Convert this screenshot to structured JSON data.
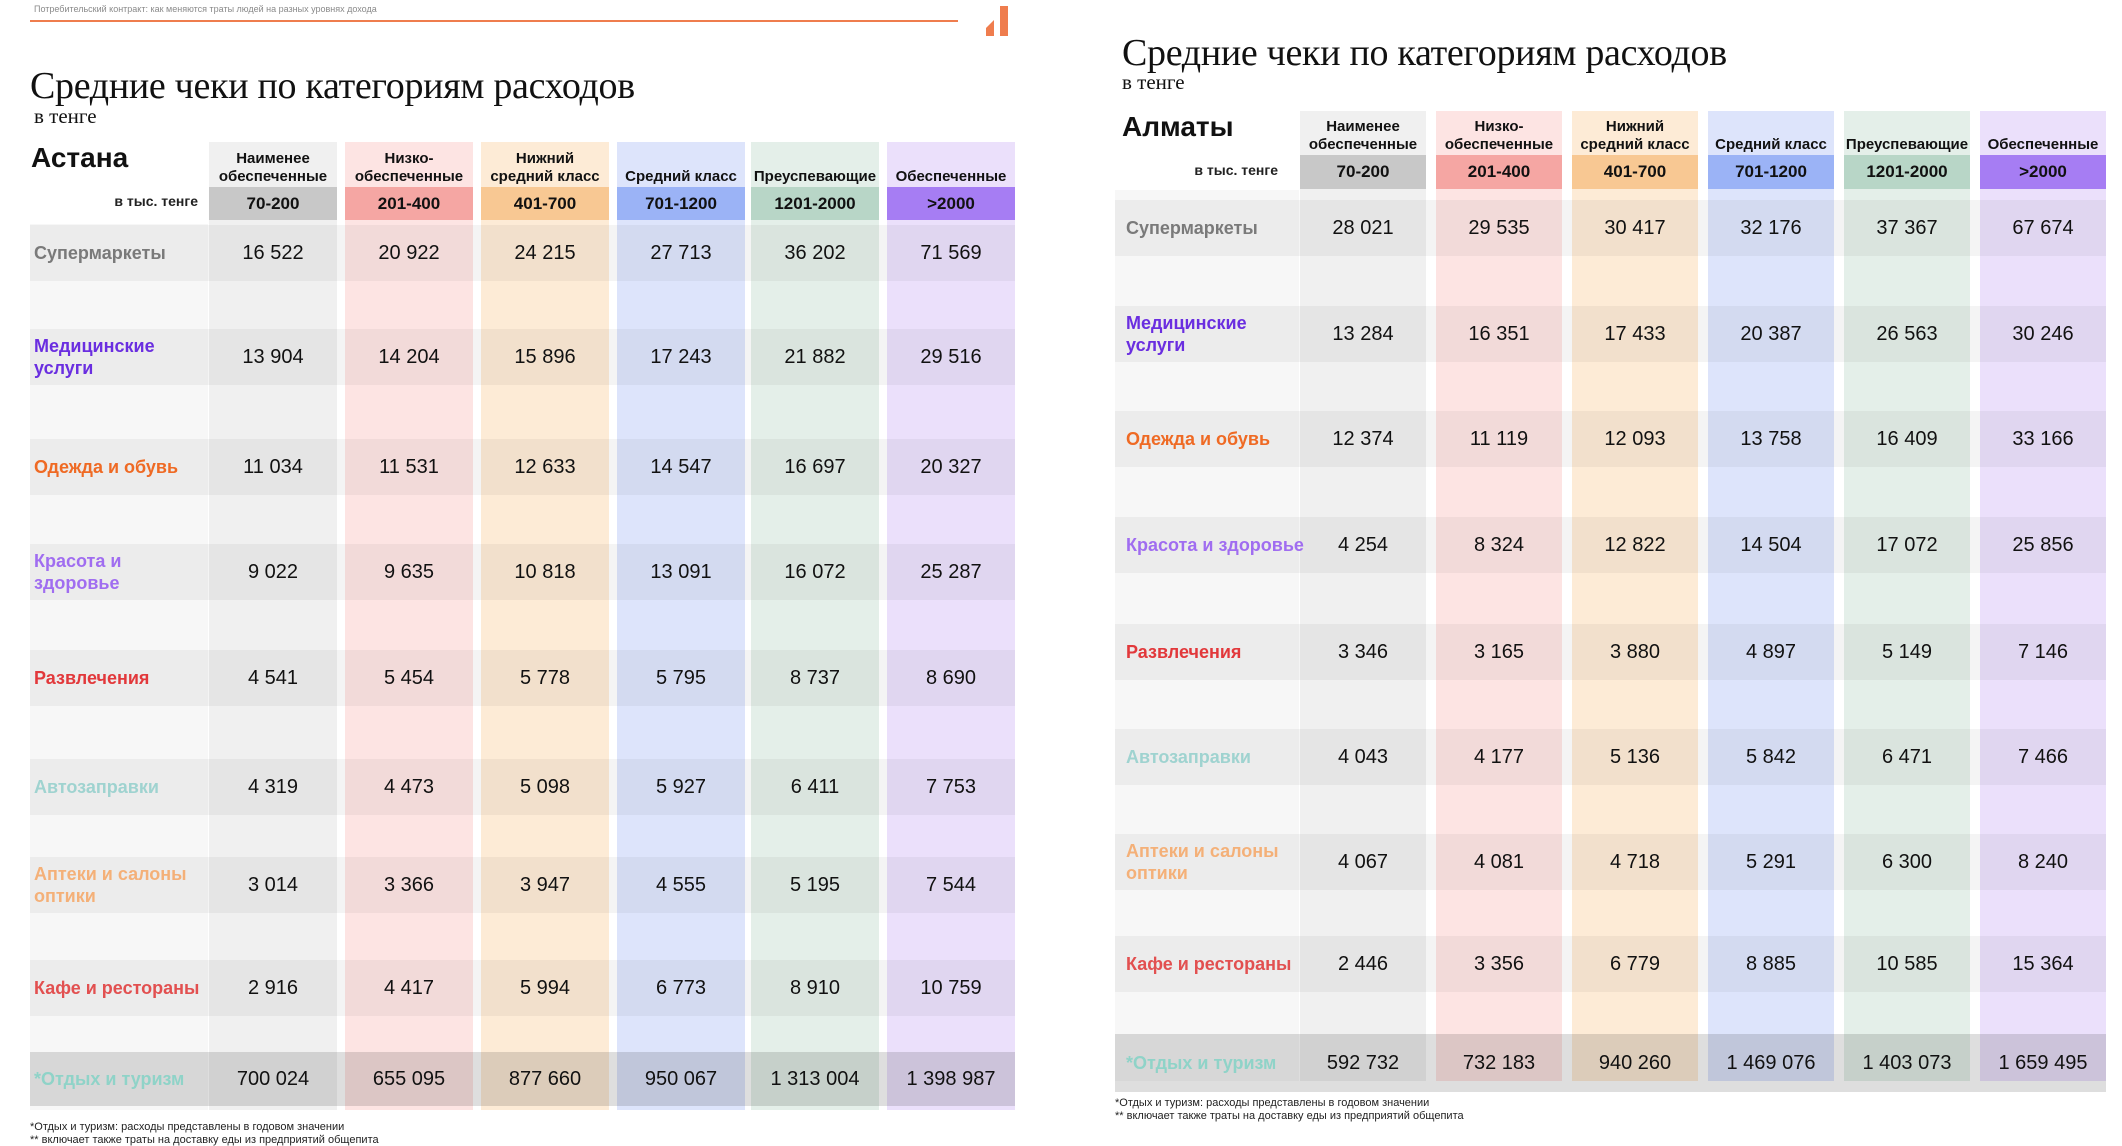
{
  "header": {
    "caption": "Потребительский контракт: как меняются траты людей на разных уровнях дохода",
    "accent_color": "#ef7d4e"
  },
  "colors": {
    "columns": [
      "#f0f0f0",
      "#fde4e3",
      "#fdebd6",
      "#dde4fb",
      "#e4efe9",
      "#ebe0fb"
    ],
    "ranges": [
      "#c8c8c8",
      "#f5a6a3",
      "#f8c893",
      "#9bb3f6",
      "#b8d6c7",
      "#a67df3"
    ],
    "labels": [
      "#7a7a7a",
      "#6a2ee0",
      "#ef6a24",
      "#a06df0",
      "#e2383b",
      "#9fd3d0",
      "#f4b078",
      "#e25050",
      "#8fd3c8"
    ]
  },
  "columns": {
    "headers": [
      "Наименее обеспеченные",
      "Низко-обеспеченные",
      "Нижний средний класс",
      "Средний класс",
      "Преуспевающие",
      "Обеспеченные"
    ],
    "ranges": [
      "70-200",
      "201-400",
      "401-700",
      "701-1200",
      "1201-2000",
      ">2000"
    ]
  },
  "panels": [
    {
      "title": "Средние чеки по категориям расходов",
      "subtitle": "в тенге",
      "city": "Астана",
      "unit": "в тыс. тенге",
      "rows": [
        {
          "label": "Супермаркеты",
          "values": [
            "16 522",
            "20 922",
            "24 215",
            "27 713",
            "36 202",
            "71 569"
          ]
        },
        {
          "label": "Медицинские услуги",
          "values": [
            "13 904",
            "14 204",
            "15 896",
            "17 243",
            "21 882",
            "29 516"
          ]
        },
        {
          "label": "Одежда и обувь",
          "values": [
            "11 034",
            "11 531",
            "12 633",
            "14 547",
            "16 697",
            "20 327"
          ]
        },
        {
          "label": "Красота и здоровье",
          "values": [
            "9 022",
            "9 635",
            "10 818",
            "13 091",
            "16 072",
            "25 287"
          ]
        },
        {
          "label": "Развлечения",
          "values": [
            "4 541",
            "5 454",
            "5 778",
            "5 795",
            "8 737",
            "8 690"
          ]
        },
        {
          "label": "Автозаправки",
          "values": [
            "4 319",
            "4 473",
            "5 098",
            "5 927",
            "6 411",
            "7 753"
          ]
        },
        {
          "label": "Аптеки и салоны оптики",
          "values": [
            "3 014",
            "3 366",
            "3 947",
            "4 555",
            "5 195",
            "7 544"
          ]
        },
        {
          "label": "Кафе и рестораны",
          "values": [
            "2 916",
            "4 417",
            "5 994",
            "6 773",
            "8 910",
            "10 759"
          ]
        },
        {
          "label": "*Отдых и туризм",
          "values": [
            "700 024",
            "655 095",
            "877 660",
            "950 067",
            "1 313 004",
            "1 398 987"
          ]
        }
      ],
      "footnotes": [
        "*Отдых и туризм: расходы представлены в годовом значении",
        "** включает также траты на доставку еды из предприятий общепита"
      ]
    },
    {
      "title": "Средние чеки по категориям расходов",
      "subtitle": "в тенге",
      "city": "Алматы",
      "unit": "в тыс. тенге",
      "rows": [
        {
          "label": "Супермаркеты",
          "values": [
            "28 021",
            "29 535",
            "30 417",
            "32 176",
            "37 367",
            "67 674"
          ]
        },
        {
          "label": "Медицинские услуги",
          "values": [
            "13 284",
            "16 351",
            "17 433",
            "20 387",
            "26 563",
            "30 246"
          ]
        },
        {
          "label": "Одежда и обувь",
          "values": [
            "12 374",
            "11 119",
            "12 093",
            "13 758",
            "16 409",
            "33 166"
          ]
        },
        {
          "label": "Красота и здоровье",
          "values": [
            "4 254",
            "8 324",
            "12 822",
            "14 504",
            "17 072",
            "25 856"
          ]
        },
        {
          "label": "Развлечения",
          "values": [
            "3 346",
            "3 165",
            "3 880",
            "4 897",
            "5 149",
            "7 146"
          ]
        },
        {
          "label": "Автозаправки",
          "values": [
            "4 043",
            "4 177",
            "5 136",
            "5 842",
            "6 471",
            "7 466"
          ]
        },
        {
          "label": "Аптеки и салоны оптики",
          "values": [
            "4 067",
            "4 081",
            "4 718",
            "5 291",
            "6 300",
            "8 240"
          ]
        },
        {
          "label": "Кафе и рестораны",
          "values": [
            "2 446",
            "3 356",
            "6 779",
            "8 885",
            "10 585",
            "15 364"
          ]
        },
        {
          "label": "*Отдых и туризм",
          "values": [
            "592 732",
            "732 183",
            "940 260",
            "1 469 076",
            "1 403 073",
            "1 659 495"
          ]
        }
      ],
      "footnotes": [
        "*Отдых и туризм: расходы представлены в годовом значении",
        "** включает также траты на доставку еды из предприятий общепита"
      ]
    }
  ]
}
